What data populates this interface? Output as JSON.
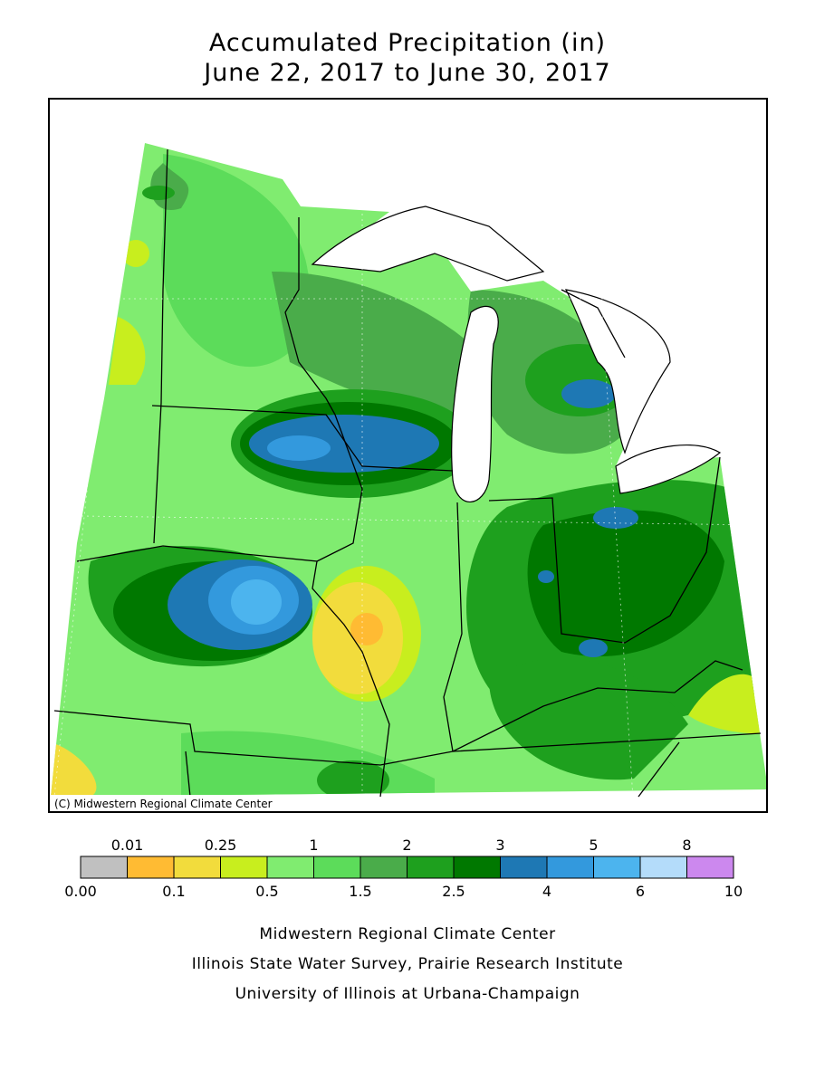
{
  "title": {
    "line1": "Accumulated Precipitation (in)",
    "line2": "June 22, 2017 to June 30, 2017"
  },
  "map": {
    "copyright": "(C) Midwestern Regional Climate Center"
  },
  "legend": {
    "colors": [
      "#c0c0c0",
      "#ffbb33",
      "#f2dc3c",
      "#c8ee1e",
      "#80ec70",
      "#5cdc5a",
      "#4aac4a",
      "#1ea01e",
      "#007800",
      "#1e78b4",
      "#3399dd",
      "#4cb4ee",
      "#b4dcfa",
      "#cc88ee"
    ],
    "breaks": [
      "0.00",
      "0.01",
      "0.1",
      "0.25",
      "0.5",
      "1",
      "1.5",
      "2",
      "2.5",
      "3",
      "4",
      "5",
      "6",
      "8",
      "10"
    ]
  },
  "footer": {
    "lines": [
      "Midwestern Regional Climate Center",
      "Illinois State Water Survey, Prairie Research Institute",
      "University of Illinois at Urbana-Champaign"
    ]
  }
}
